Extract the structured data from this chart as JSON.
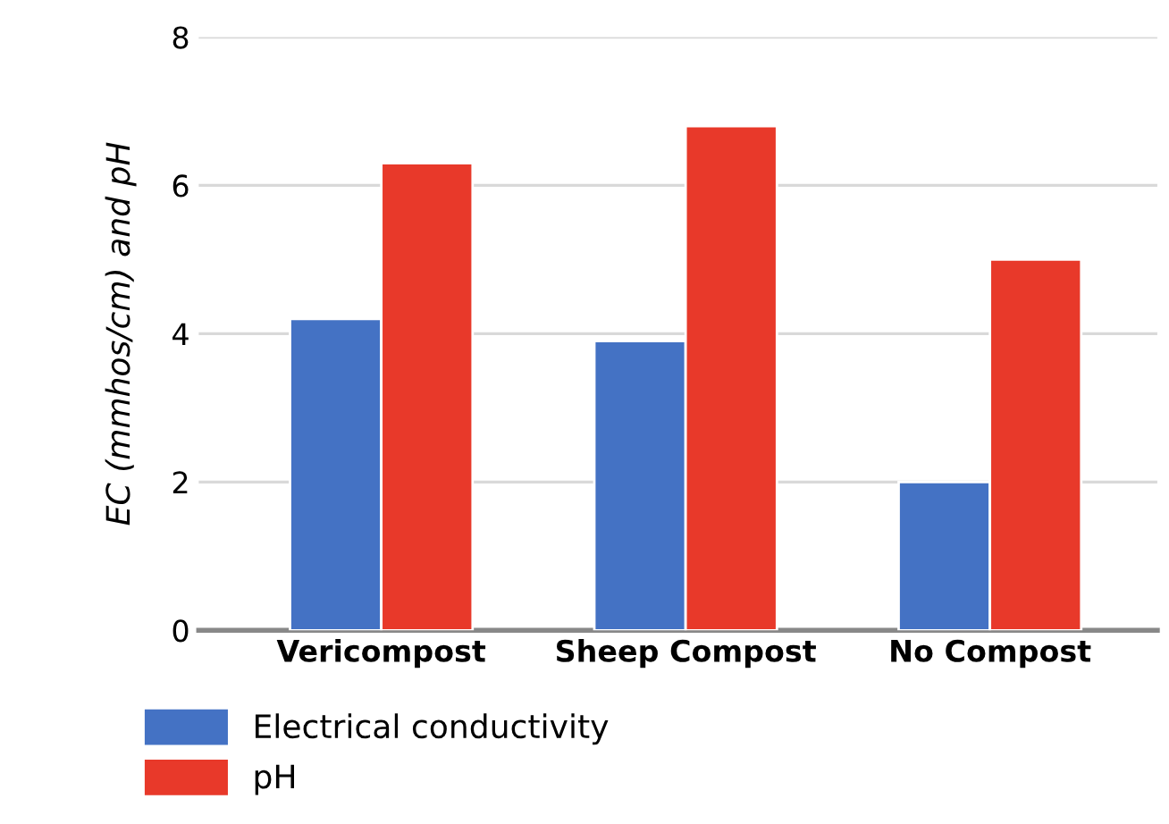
{
  "chart_data": {
    "type": "bar",
    "ylabel": "EC (mmhos/cm) and pH",
    "categories": [
      "Vericompost",
      "Sheep Compost",
      "No Compost"
    ],
    "series": [
      {
        "name": "Electrical conductivity",
        "color": "#4472c4",
        "values": [
          4.2,
          3.9,
          2.0
        ]
      },
      {
        "name": "pH",
        "color": "#e8392a",
        "values": [
          6.3,
          6.8,
          5.0
        ]
      }
    ],
    "ylim": [
      0,
      8
    ],
    "yticks": [
      0,
      2,
      4,
      6,
      8
    ],
    "grid": "y",
    "legend": "bottom left"
  }
}
